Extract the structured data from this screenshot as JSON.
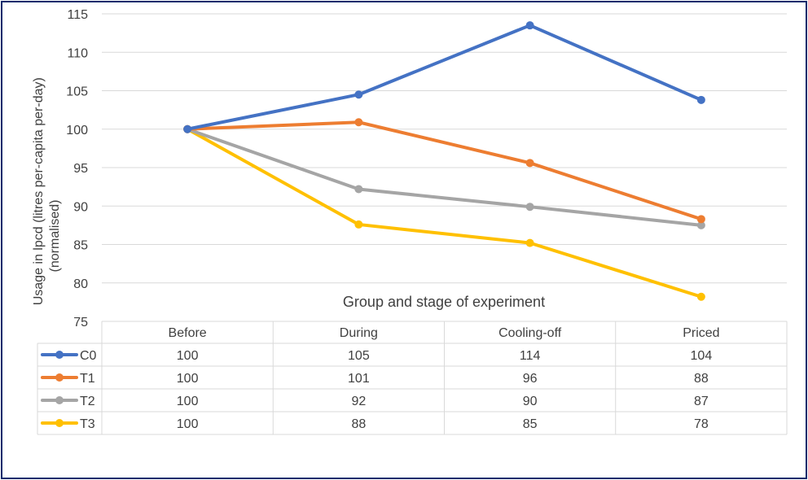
{
  "chart_data": {
    "type": "line",
    "title": "",
    "xlabel": "Group and stage of experiment",
    "ylabel": "Usage in lpcd (litres per-capita per-day) (normalised)",
    "ylabel_lines": [
      "Usage in lpcd (litres per-capita per-day)",
      "(normalised)"
    ],
    "ylim": [
      75,
      115
    ],
    "yticks": [
      75,
      80,
      85,
      90,
      95,
      100,
      105,
      110,
      115
    ],
    "grid": true,
    "legend": "data-table-left",
    "categories": [
      "Before",
      "During",
      "Cooling-off",
      "Priced"
    ],
    "series": [
      {
        "name": "C0",
        "color": "#4472c4",
        "values": [
          100,
          104.5,
          113.5,
          103.8
        ],
        "table_values": [
          "100",
          "105",
          "114",
          "104"
        ]
      },
      {
        "name": "T1",
        "color": "#ed7d31",
        "values": [
          100,
          100.9,
          95.6,
          88.3
        ],
        "table_values": [
          "100",
          "101",
          "96",
          "88"
        ]
      },
      {
        "name": "T2",
        "color": "#a5a5a5",
        "values": [
          100,
          92.2,
          89.9,
          87.5
        ],
        "table_values": [
          "100",
          "92",
          "90",
          "87"
        ]
      },
      {
        "name": "T3",
        "color": "#ffc000",
        "values": [
          100,
          87.6,
          85.2,
          78.2
        ],
        "table_values": [
          "100",
          "88",
          "85",
          "78"
        ]
      }
    ]
  }
}
